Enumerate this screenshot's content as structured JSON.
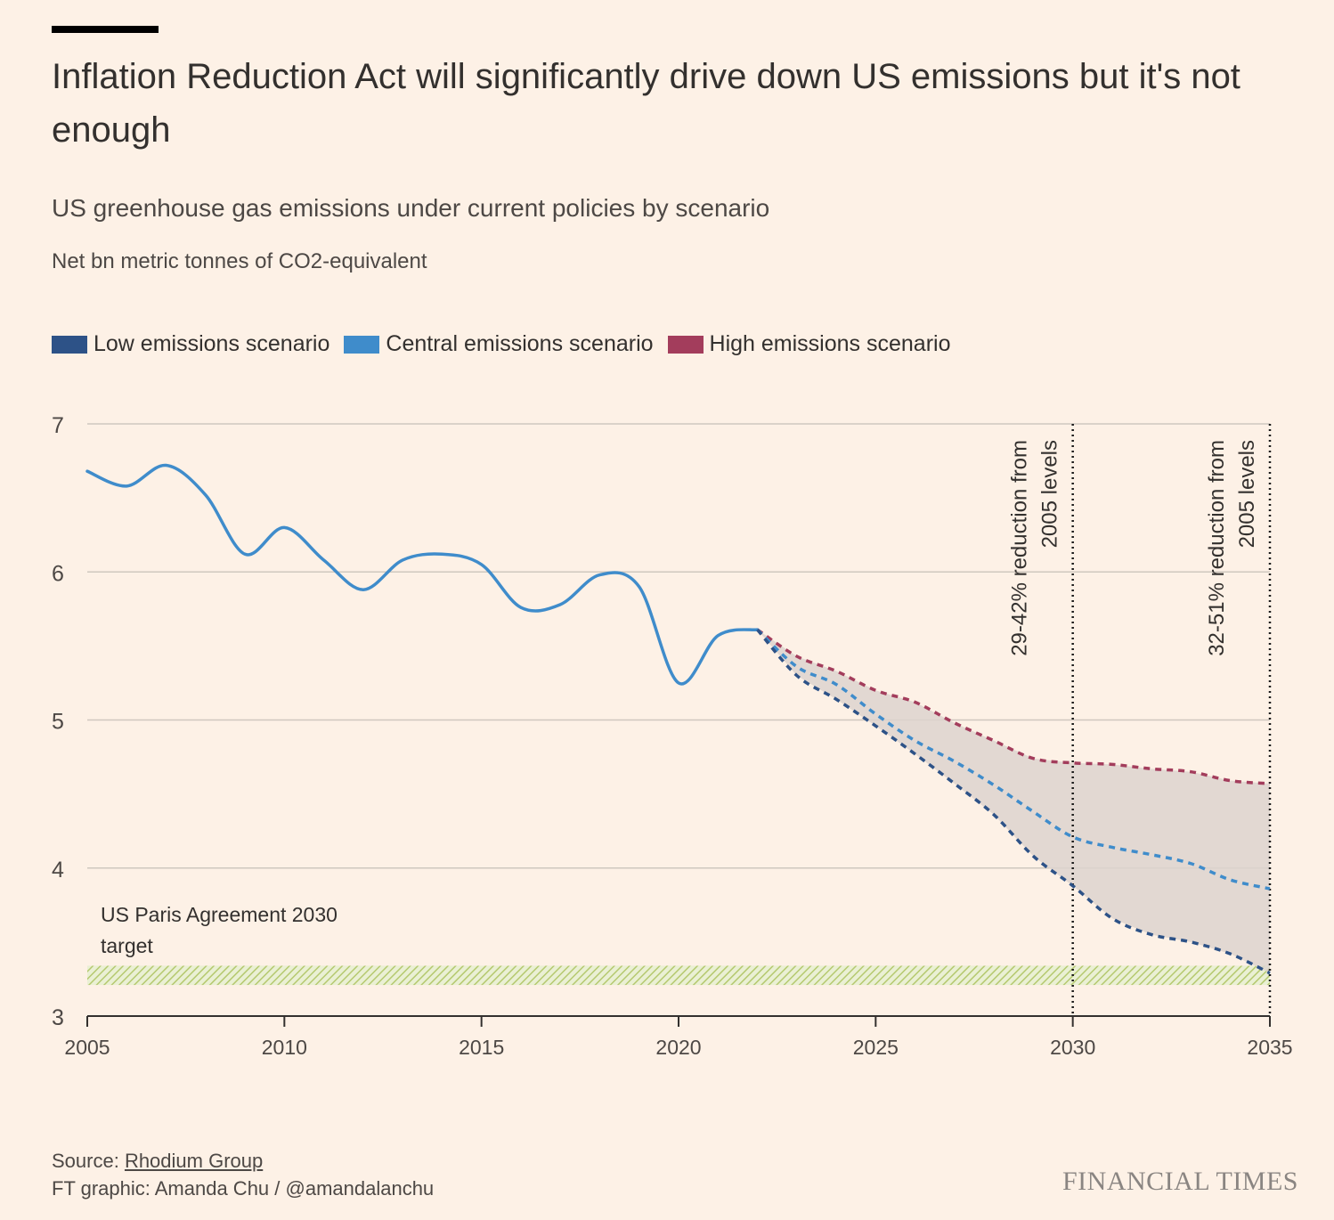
{
  "header": {
    "title": "Inflation Reduction Act will significantly drive down US emissions but it's not enough",
    "subtitle": "US greenhouse gas emissions under current policies by scenario",
    "unit": "Net bn metric tonnes of CO2-equivalent"
  },
  "legend": [
    {
      "label": "Low emissions scenario",
      "color": "#2d5287"
    },
    {
      "label": "Central emissions scenario",
      "color": "#3f8ccb"
    },
    {
      "label": "High emissions scenario",
      "color": "#a33d5c"
    }
  ],
  "footer": {
    "source_prefix": "Source: ",
    "source_link": "Rhodium Group",
    "credit": "FT graphic: Amanda Chu / @amandalanchu",
    "brand": "FINANCIAL TIMES"
  },
  "chart_data": {
    "type": "line",
    "x_ticks": [
      2005,
      2010,
      2015,
      2020,
      2025,
      2030,
      2035
    ],
    "y_ticks": [
      3,
      4,
      5,
      6,
      7
    ],
    "xlim": [
      2005,
      2035
    ],
    "ylim": [
      3,
      7
    ],
    "grid": true,
    "historical": {
      "color": "#3f8ccb",
      "x": [
        2005,
        2006,
        2007,
        2008,
        2009,
        2010,
        2011,
        2012,
        2013,
        2014,
        2015,
        2016,
        2017,
        2018,
        2019,
        2020,
        2021,
        2022
      ],
      "y": [
        6.68,
        6.58,
        6.72,
        6.52,
        6.12,
        6.3,
        6.08,
        5.88,
        6.08,
        6.12,
        6.05,
        5.76,
        5.78,
        5.98,
        5.9,
        5.25,
        5.57,
        5.61
      ]
    },
    "series": [
      {
        "name": "High emissions scenario",
        "color": "#a33d5c",
        "x": [
          2022,
          2023,
          2024,
          2025,
          2026,
          2027,
          2028,
          2029,
          2030,
          2031,
          2032,
          2033,
          2034,
          2035
        ],
        "y": [
          5.61,
          5.43,
          5.33,
          5.2,
          5.12,
          4.98,
          4.86,
          4.74,
          4.71,
          4.7,
          4.67,
          4.65,
          4.59,
          4.57
        ]
      },
      {
        "name": "Central emissions scenario",
        "color": "#3f8ccb",
        "x": [
          2022,
          2023,
          2024,
          2025,
          2026,
          2027,
          2028,
          2029,
          2030,
          2031,
          2032,
          2033,
          2034,
          2035
        ],
        "y": [
          5.61,
          5.36,
          5.24,
          5.04,
          4.86,
          4.72,
          4.56,
          4.38,
          4.21,
          4.14,
          4.09,
          4.03,
          3.92,
          3.86
        ]
      },
      {
        "name": "Low emissions scenario",
        "color": "#2d5287",
        "x": [
          2022,
          2023,
          2024,
          2025,
          2026,
          2027,
          2028,
          2029,
          2030,
          2031,
          2032,
          2033,
          2034,
          2035
        ],
        "y": [
          5.61,
          5.3,
          5.14,
          4.96,
          4.77,
          4.57,
          4.36,
          4.08,
          3.88,
          3.66,
          3.55,
          3.5,
          3.42,
          3.29
        ]
      }
    ],
    "target_band": {
      "label": "US Paris Agreement 2030 target",
      "y_range": [
        3.21,
        3.34
      ]
    },
    "annotations": [
      {
        "x": 2030,
        "line1": "29-42% reduction from",
        "line2": "2005 levels"
      },
      {
        "x": 2035,
        "line1": "32-51% reduction from",
        "line2": "2005 levels"
      }
    ]
  }
}
